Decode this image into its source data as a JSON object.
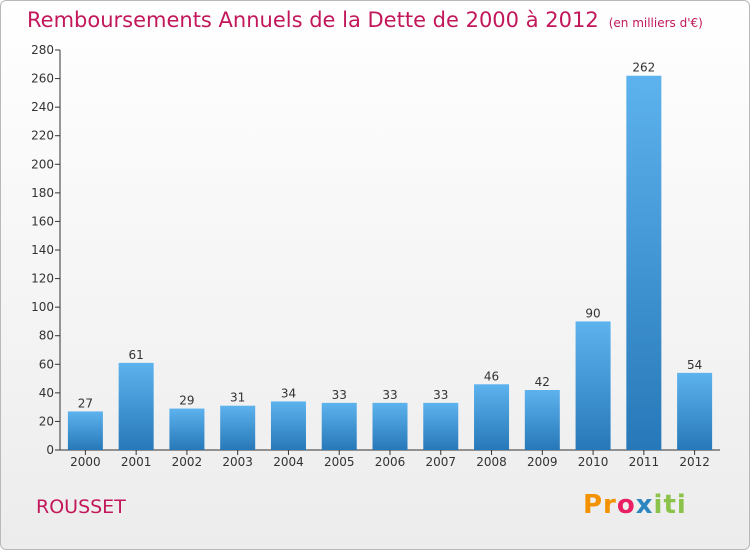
{
  "header": {
    "title": "Remboursements Annuels de la Dette de 2000 à 2012",
    "unit": "(en milliers d'€)"
  },
  "footer": {
    "commune": "ROUSSET",
    "logo_text": "Proxiti",
    "logo_parts": [
      "Pr",
      "o",
      "x",
      "iti"
    ]
  },
  "colors": {
    "bar_top": "#5db3ee",
    "bar_bottom": "#2778b8",
    "title": "#c2185b"
  },
  "chart_data": {
    "type": "bar",
    "title": "Remboursements Annuels de la Dette de 2000 à 2012",
    "xlabel": "",
    "ylabel": "",
    "categories": [
      "2000",
      "2001",
      "2002",
      "2003",
      "2004",
      "2005",
      "2006",
      "2007",
      "2008",
      "2009",
      "2010",
      "2011",
      "2012"
    ],
    "values": [
      27,
      61,
      29,
      31,
      34,
      33,
      33,
      33,
      46,
      42,
      90,
      262,
      54
    ],
    "ylim": [
      0,
      280
    ],
    "yticks": [
      0,
      20,
      40,
      60,
      80,
      100,
      120,
      140,
      160,
      180,
      200,
      220,
      240,
      260,
      280
    ],
    "grid": false,
    "legend": "none"
  }
}
